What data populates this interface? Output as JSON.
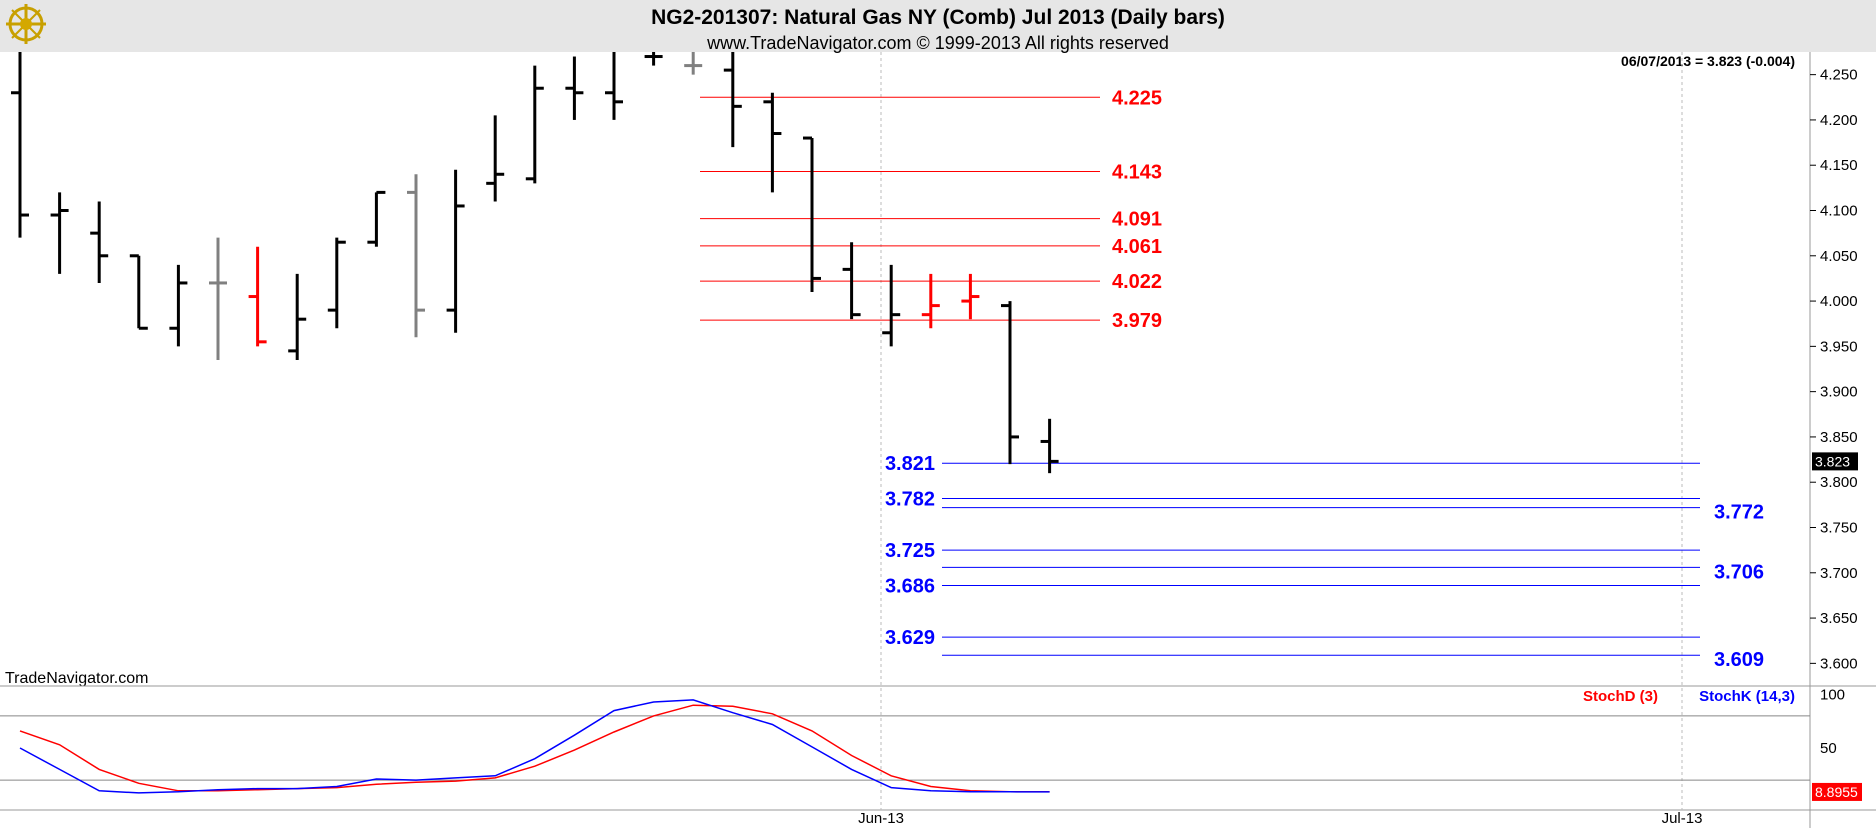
{
  "header": {
    "title": "NG2-201307:  Natural Gas NY (Comb) Jul 2013  (Daily bars)",
    "subtitle": "www.TradeNavigator.com © 1999-2013 All rights reserved",
    "last_info": "06/07/2013 = 3.823 (-0.004)",
    "watermark": "TradeNavigator.com"
  },
  "colors": {
    "background": "#ffffff",
    "header_bg": "#e6e6e6",
    "bar_up": "#000000",
    "bar_gray": "#808080",
    "bar_red": "#ff0000",
    "resistance": "#ff0000",
    "support": "#0000ff",
    "stochD": "#ff0000",
    "stochK": "#0000ff"
  },
  "chart_data": [
    {
      "type": "ohlc",
      "ylim": [
        3.575,
        4.275
      ],
      "yticks": [
        "4.250",
        "4.200",
        "4.150",
        "4.100",
        "4.050",
        "4.000",
        "3.950",
        "3.900",
        "3.850",
        "3.800",
        "3.750",
        "3.700",
        "3.650",
        "3.600"
      ],
      "last_price_label": "3.823",
      "x_labels": [
        "Jun-13",
        "Jul-13"
      ],
      "bars": [
        {
          "o": 4.23,
          "h": 4.28,
          "l": 4.07,
          "c": 4.095,
          "color": "black"
        },
        {
          "o": 4.095,
          "h": 4.12,
          "l": 4.03,
          "c": 4.1,
          "color": "black"
        },
        {
          "o": 4.075,
          "h": 4.11,
          "l": 4.02,
          "c": 4.05,
          "color": "black"
        },
        {
          "o": 4.05,
          "h": 4.05,
          "l": 3.97,
          "c": 3.97,
          "color": "black"
        },
        {
          "o": 3.97,
          "h": 4.04,
          "l": 3.95,
          "c": 4.02,
          "color": "black"
        },
        {
          "o": 4.02,
          "h": 4.07,
          "l": 3.935,
          "c": 4.02,
          "color": "gray"
        },
        {
          "o": 4.005,
          "h": 4.06,
          "l": 3.95,
          "c": 3.955,
          "color": "red"
        },
        {
          "o": 3.945,
          "h": 4.03,
          "l": 3.935,
          "c": 3.98,
          "color": "black"
        },
        {
          "o": 3.99,
          "h": 4.07,
          "l": 3.97,
          "c": 4.065,
          "color": "black"
        },
        {
          "o": 4.065,
          "h": 4.12,
          "l": 4.06,
          "c": 4.12,
          "color": "black"
        },
        {
          "o": 4.12,
          "h": 4.14,
          "l": 3.96,
          "c": 3.99,
          "color": "gray"
        },
        {
          "o": 3.99,
          "h": 4.145,
          "l": 3.965,
          "c": 4.105,
          "color": "black"
        },
        {
          "o": 4.13,
          "h": 4.205,
          "l": 4.11,
          "c": 4.14,
          "color": "black"
        },
        {
          "o": 4.135,
          "h": 4.26,
          "l": 4.13,
          "c": 4.235,
          "color": "black"
        },
        {
          "o": 4.235,
          "h": 4.27,
          "l": 4.2,
          "c": 4.23,
          "color": "black"
        },
        {
          "o": 4.23,
          "h": 4.28,
          "l": 4.2,
          "c": 4.22,
          "color": "black"
        },
        {
          "o": 4.27,
          "h": 4.28,
          "l": 4.26,
          "c": 4.27,
          "color": "black"
        },
        {
          "o": 4.26,
          "h": 4.28,
          "l": 4.25,
          "c": 4.26,
          "color": "gray"
        },
        {
          "o": 4.255,
          "h": 4.28,
          "l": 4.17,
          "c": 4.215,
          "color": "black"
        },
        {
          "o": 4.22,
          "h": 4.23,
          "l": 4.12,
          "c": 4.185,
          "color": "black"
        },
        {
          "o": 4.18,
          "h": 4.18,
          "l": 4.01,
          "c": 4.025,
          "color": "black"
        },
        {
          "o": 4.035,
          "h": 4.065,
          "l": 3.98,
          "c": 3.985,
          "color": "black"
        },
        {
          "o": 3.965,
          "h": 4.04,
          "l": 3.95,
          "c": 3.985,
          "color": "black"
        },
        {
          "o": 3.985,
          "h": 4.03,
          "l": 3.97,
          "c": 3.995,
          "color": "red"
        },
        {
          "o": 4.0,
          "h": 4.03,
          "l": 3.98,
          "c": 4.005,
          "color": "red"
        },
        {
          "o": 3.995,
          "h": 4.0,
          "l": 3.82,
          "c": 3.85,
          "color": "black"
        },
        {
          "o": 3.845,
          "h": 3.87,
          "l": 3.81,
          "c": 3.823,
          "color": "black"
        }
      ],
      "resistance_lines": [
        {
          "value": 4.225,
          "label": "4.225"
        },
        {
          "value": 4.143,
          "label": "4.143"
        },
        {
          "value": 4.091,
          "label": "4.091"
        },
        {
          "value": 4.061,
          "label": "4.061"
        },
        {
          "value": 4.022,
          "label": "4.022"
        },
        {
          "value": 3.979,
          "label": "3.979"
        }
      ],
      "support_lines_left": [
        {
          "value": 3.821,
          "label": "3.821"
        },
        {
          "value": 3.782,
          "label": "3.782"
        },
        {
          "value": 3.725,
          "label": "3.725"
        },
        {
          "value": 3.686,
          "label": "3.686"
        },
        {
          "value": 3.629,
          "label": "3.629"
        }
      ],
      "support_lines_right": [
        {
          "value": 3.772,
          "label": "3.772"
        },
        {
          "value": 3.706,
          "label": "3.706"
        },
        {
          "value": 3.609,
          "label": "3.609"
        }
      ]
    },
    {
      "type": "line",
      "ylim": [
        -8,
        108
      ],
      "yticks": [
        "100",
        "50"
      ],
      "last_value_label": "8.8955",
      "reference_lines": [
        80,
        20
      ],
      "series": [
        {
          "name": "StochD (3)",
          "color": "#ff0000",
          "values": [
            66,
            53,
            30,
            17,
            10,
            10,
            11,
            12,
            13,
            16,
            18,
            19,
            22,
            33,
            48,
            65,
            80,
            90,
            89,
            82,
            66,
            43,
            24,
            14,
            10,
            9,
            9
          ]
        },
        {
          "name": "StochK (14,3)",
          "color": "#0000ff",
          "values": [
            50,
            30,
            10,
            8,
            9,
            11,
            12,
            12,
            14,
            21,
            20,
            22,
            24,
            40,
            62,
            85,
            93,
            95,
            83,
            72,
            51,
            30,
            13,
            10,
            9,
            9,
            8.9
          ]
        }
      ]
    }
  ]
}
